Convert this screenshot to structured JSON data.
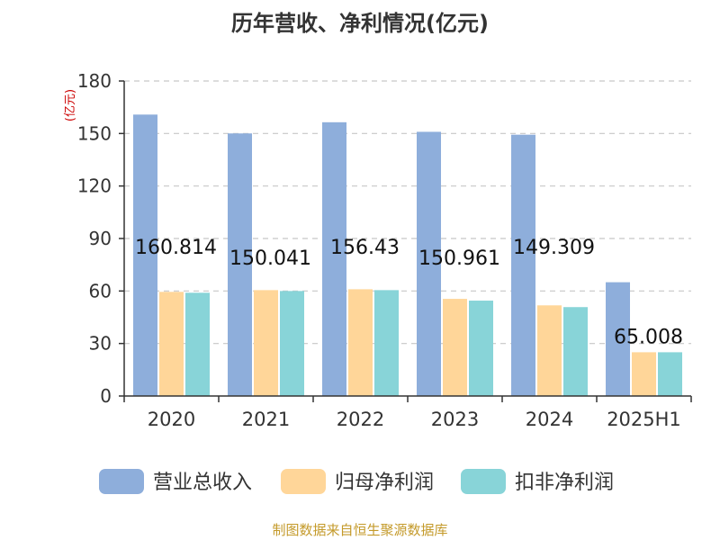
{
  "chart_data": {
    "type": "bar",
    "title": "历年营收、净利情况(亿元)",
    "ylabel": "(亿元)",
    "categories": [
      "2020",
      "2021",
      "2022",
      "2023",
      "2024",
      "2025H1"
    ],
    "ylim": [
      0,
      180
    ],
    "yticks": [
      "0",
      "30",
      "60",
      "90",
      "120",
      "150",
      "180"
    ],
    "grid": true,
    "legend_position": "bottom",
    "series": [
      {
        "name": "营业总收入",
        "color": "#8eaedb",
        "values": [
          160.814,
          150.041,
          156.43,
          150.961,
          149.309,
          65.008
        ],
        "labels": [
          "160.814",
          "150.041",
          "156.43",
          "150.961",
          "149.309",
          "65.008"
        ]
      },
      {
        "name": "归母净利润",
        "color": "#ffd699",
        "values": [
          59.5,
          60.5,
          61.0,
          55.5,
          51.8,
          25.0
        ]
      },
      {
        "name": "扣非净利润",
        "color": "#88d4d8",
        "values": [
          59.0,
          60.0,
          60.5,
          54.5,
          50.8,
          25.0
        ]
      }
    ]
  },
  "footer": {
    "source": "制图数据来自恒生聚源数据库",
    "source_color": "#c49a2a"
  }
}
